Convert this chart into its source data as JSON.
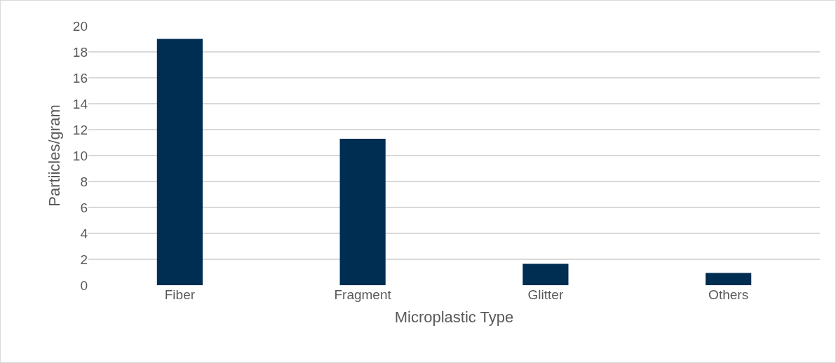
{
  "chart_data": {
    "type": "bar",
    "xlabel": "Microplastic Type",
    "ylabel": "Partiicles/gram",
    "categories": [
      "Fiber",
      "Fragment",
      "Glitter",
      "Others"
    ],
    "values": [
      19,
      11.3,
      1.65,
      0.95
    ],
    "color": "#002d52",
    "ylim": [
      0,
      20
    ],
    "yticks": [
      0,
      2,
      4,
      6,
      8,
      10,
      12,
      14,
      16,
      18,
      20
    ],
    "grid": "y"
  }
}
